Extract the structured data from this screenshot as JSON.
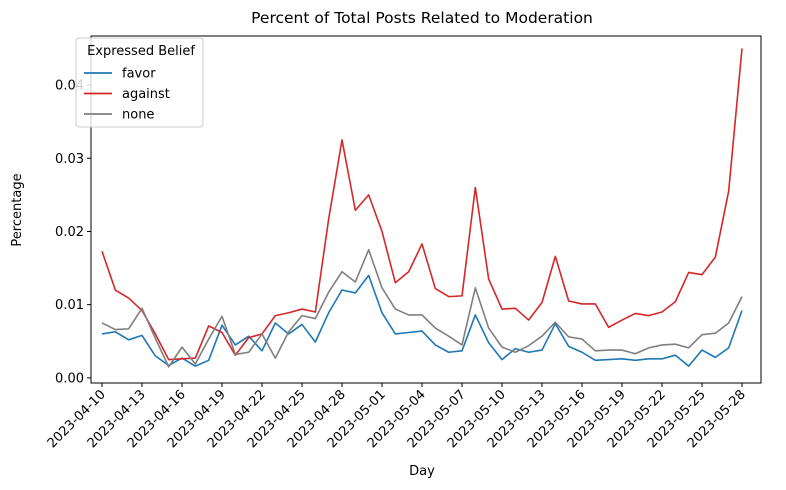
{
  "chart_data": {
    "type": "line",
    "title": "Percent of Total Posts Related to Moderation",
    "xlabel": "Day",
    "ylabel": "Percentage",
    "x": [
      "2023-04-10",
      "2023-04-11",
      "2023-04-12",
      "2023-04-13",
      "2023-04-14",
      "2023-04-15",
      "2023-04-16",
      "2023-04-17",
      "2023-04-18",
      "2023-04-19",
      "2023-04-20",
      "2023-04-21",
      "2023-04-22",
      "2023-04-23",
      "2023-04-24",
      "2023-04-25",
      "2023-04-26",
      "2023-04-27",
      "2023-04-28",
      "2023-04-29",
      "2023-04-30",
      "2023-05-01",
      "2023-05-02",
      "2023-05-03",
      "2023-05-04",
      "2023-05-05",
      "2023-05-06",
      "2023-05-07",
      "2023-05-08",
      "2023-05-09",
      "2023-05-10",
      "2023-05-11",
      "2023-05-12",
      "2023-05-13",
      "2023-05-14",
      "2023-05-15",
      "2023-05-16",
      "2023-05-17",
      "2023-05-18",
      "2023-05-19",
      "2023-05-20",
      "2023-05-21",
      "2023-05-22",
      "2023-05-23",
      "2023-05-24",
      "2023-05-25",
      "2023-05-26",
      "2023-05-27",
      "2023-05-28"
    ],
    "x_ticks": [
      "2023-04-10",
      "2023-04-13",
      "2023-04-16",
      "2023-04-19",
      "2023-04-22",
      "2023-04-25",
      "2023-04-28",
      "2023-05-01",
      "2023-05-04",
      "2023-05-07",
      "2023-05-10",
      "2023-05-13",
      "2023-05-16",
      "2023-05-19",
      "2023-05-22",
      "2023-05-25",
      "2023-05-28"
    ],
    "y_ticks": [
      0.0,
      0.01,
      0.02,
      0.03,
      0.04
    ],
    "y_tick_labels": [
      "0.00",
      "0.01",
      "0.02",
      "0.03",
      "0.04"
    ],
    "ylim": [
      -0.0007,
      0.0467
    ],
    "legend": {
      "title": "Expressed Belief",
      "position": "top-left"
    },
    "grid": false,
    "series": [
      {
        "name": "favor",
        "color": "#1f77b4",
        "values": [
          0.006,
          0.0063,
          0.0052,
          0.0058,
          0.003,
          0.0017,
          0.0027,
          0.0016,
          0.0024,
          0.0072,
          0.0045,
          0.0057,
          0.0037,
          0.0075,
          0.006,
          0.0073,
          0.0049,
          0.0089,
          0.012,
          0.0116,
          0.014,
          0.0089,
          0.006,
          0.0062,
          0.0064,
          0.0045,
          0.0035,
          0.0037,
          0.0086,
          0.0048,
          0.0025,
          0.004,
          0.0035,
          0.0038,
          0.0074,
          0.0043,
          0.0035,
          0.0024,
          0.0025,
          0.0026,
          0.0024,
          0.0026,
          0.0026,
          0.0031,
          0.0016,
          0.0038,
          0.0028,
          0.0041,
          0.0092
        ]
      },
      {
        "name": "against",
        "color": "#d62728",
        "values": [
          0.0173,
          0.012,
          0.0109,
          0.0092,
          0.006,
          0.0025,
          0.0026,
          0.0027,
          0.0071,
          0.0062,
          0.0031,
          0.0055,
          0.006,
          0.0085,
          0.0089,
          0.0094,
          0.009,
          0.0217,
          0.0325,
          0.0229,
          0.025,
          0.02,
          0.013,
          0.0145,
          0.0183,
          0.0122,
          0.0111,
          0.0112,
          0.026,
          0.0135,
          0.0094,
          0.0095,
          0.0079,
          0.0103,
          0.0166,
          0.0105,
          0.0101,
          0.0101,
          0.0069,
          0.0079,
          0.0088,
          0.0085,
          0.009,
          0.0104,
          0.0144,
          0.0141,
          0.0165,
          0.0255,
          0.045
        ]
      },
      {
        "name": "none",
        "color": "#7f7f7f",
        "values": [
          0.0075,
          0.0066,
          0.0067,
          0.0095,
          0.0054,
          0.0015,
          0.0042,
          0.0019,
          0.0053,
          0.0084,
          0.0032,
          0.0035,
          0.006,
          0.0027,
          0.0063,
          0.0085,
          0.0081,
          0.0117,
          0.0145,
          0.0131,
          0.0175,
          0.0123,
          0.0094,
          0.0086,
          0.0086,
          0.0068,
          0.0057,
          0.0045,
          0.0123,
          0.0068,
          0.0042,
          0.0035,
          0.0044,
          0.0057,
          0.0076,
          0.0056,
          0.0053,
          0.0037,
          0.0038,
          0.0038,
          0.0033,
          0.0041,
          0.0045,
          0.0046,
          0.0041,
          0.0059,
          0.0061,
          0.0075,
          0.0111
        ]
      }
    ]
  }
}
